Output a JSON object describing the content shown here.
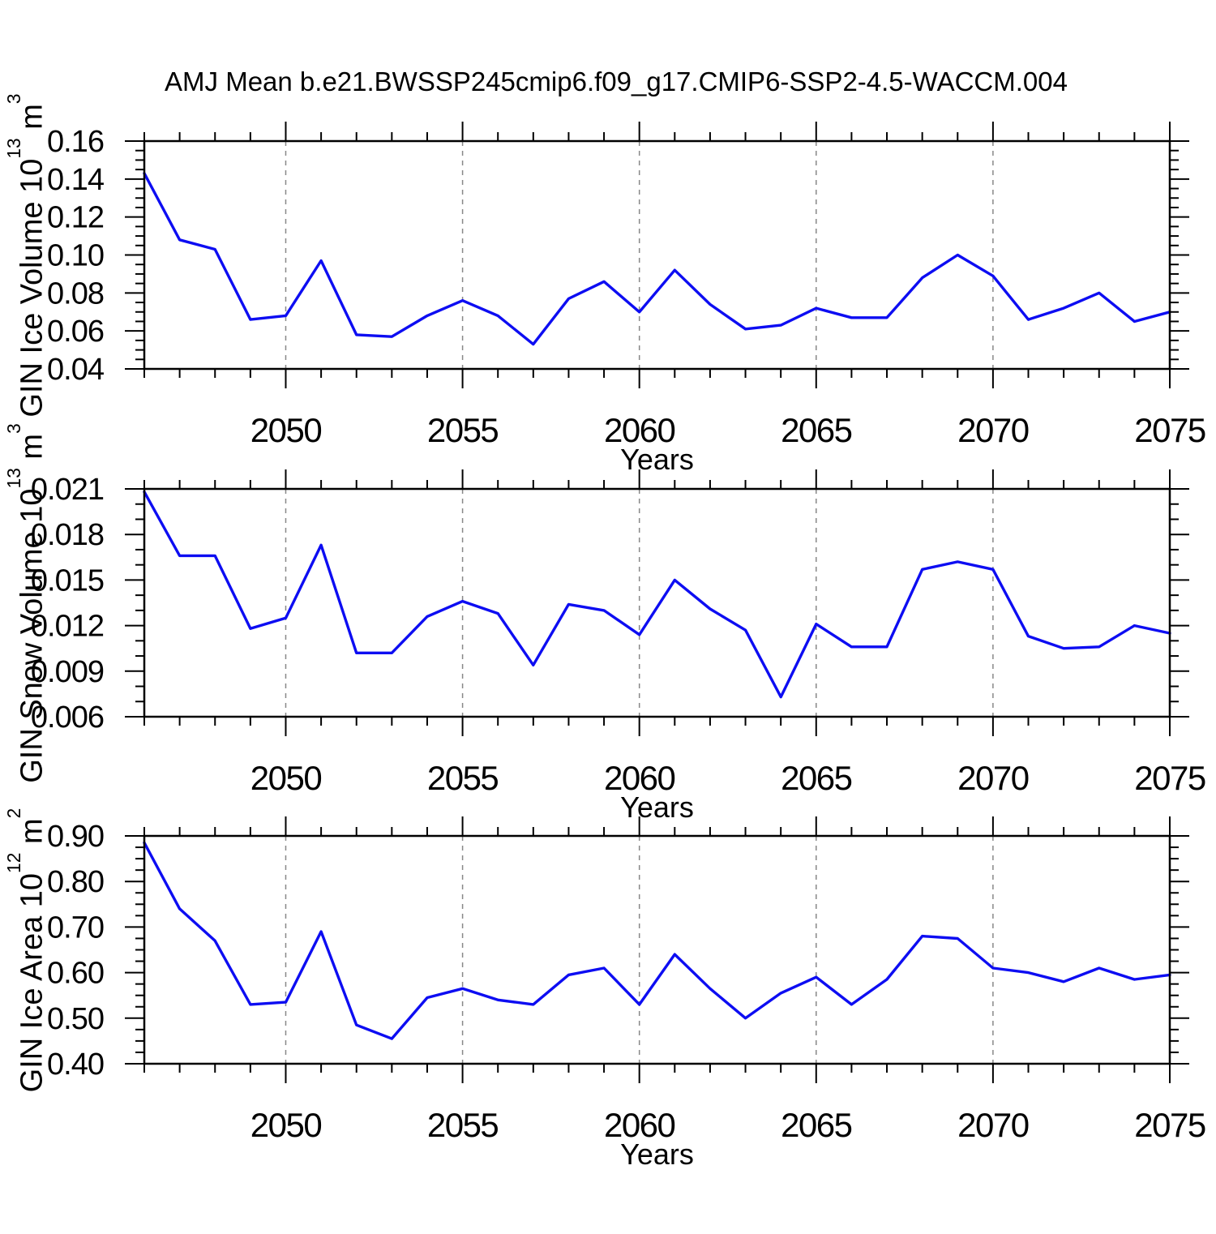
{
  "chart_data": {
    "type": "line",
    "title": "AMJ Mean b.e21.BWSSP245cmip6.f09_g17.CMIP6-SSP2-4.5-WACCM.004",
    "x_label": "Years",
    "x": [
      2046,
      2047,
      2048,
      2049,
      2050,
      2051,
      2052,
      2053,
      2054,
      2055,
      2056,
      2057,
      2058,
      2059,
      2060,
      2061,
      2062,
      2063,
      2064,
      2065,
      2066,
      2067,
      2068,
      2069,
      2070,
      2071,
      2072,
      2073,
      2074,
      2075
    ],
    "x_ticks_labeled": [
      2050,
      2055,
      2060,
      2065,
      2070,
      2075
    ],
    "x_minor_step": 1,
    "grid": "vertical-dashed-at-labeled-x-ticks",
    "legend": "none",
    "colors": {
      "line": "#0d0df2",
      "grid": "#888888",
      "frame": "#000000"
    },
    "charts": [
      {
        "id": "ice-volume",
        "name": "GIN Ice Volume",
        "ylabel_rich": {
          "base": "GIN Ice Volume 10",
          "exp": "13",
          "unit": " m",
          "unit_exp": "3"
        },
        "ylim": [
          0.04,
          0.16
        ],
        "ytick_major": 0.02,
        "ytick_minor": 0.005,
        "y_decimals": 2,
        "values": [
          0.143,
          0.108,
          0.103,
          0.066,
          0.068,
          0.097,
          0.058,
          0.057,
          0.068,
          0.076,
          0.068,
          0.053,
          0.077,
          0.086,
          0.07,
          0.092,
          0.074,
          0.061,
          0.063,
          0.072,
          0.067,
          0.067,
          0.088,
          0.1,
          0.089,
          0.066,
          0.072,
          0.08,
          0.065,
          0.07
        ]
      },
      {
        "id": "snow-volume",
        "name": "GIN Snow Volume",
        "ylabel_rich": {
          "base": "GIN Snow Volume 10",
          "exp": "13",
          "unit": " m",
          "unit_exp": "3"
        },
        "ylim": [
          0.006,
          0.021
        ],
        "ytick_major": 0.003,
        "ytick_minor": 0.001,
        "y_decimals": 3,
        "values": [
          0.0208,
          0.0166,
          0.0166,
          0.0118,
          0.0125,
          0.0173,
          0.0102,
          0.0102,
          0.0126,
          0.0136,
          0.0128,
          0.0094,
          0.0134,
          0.013,
          0.0114,
          0.015,
          0.0131,
          0.0117,
          0.0073,
          0.0121,
          0.0106,
          0.0106,
          0.0157,
          0.0162,
          0.0157,
          0.0113,
          0.0105,
          0.0106,
          0.012,
          0.0115
        ]
      },
      {
        "id": "ice-area",
        "name": "GIN Ice Area",
        "ylabel_rich": {
          "base": "GIN Ice Area 10",
          "exp": "12",
          "unit": " m",
          "unit_exp": "2"
        },
        "ylim": [
          0.4,
          0.9
        ],
        "ytick_major": 0.1,
        "ytick_minor": 0.025,
        "y_decimals": 2,
        "values": [
          0.885,
          0.74,
          0.67,
          0.53,
          0.535,
          0.69,
          0.485,
          0.455,
          0.545,
          0.565,
          0.54,
          0.53,
          0.595,
          0.61,
          0.53,
          0.64,
          0.565,
          0.5,
          0.555,
          0.59,
          0.53,
          0.585,
          0.68,
          0.675,
          0.61,
          0.6,
          0.58,
          0.61,
          0.585,
          0.595
        ]
      }
    ]
  }
}
